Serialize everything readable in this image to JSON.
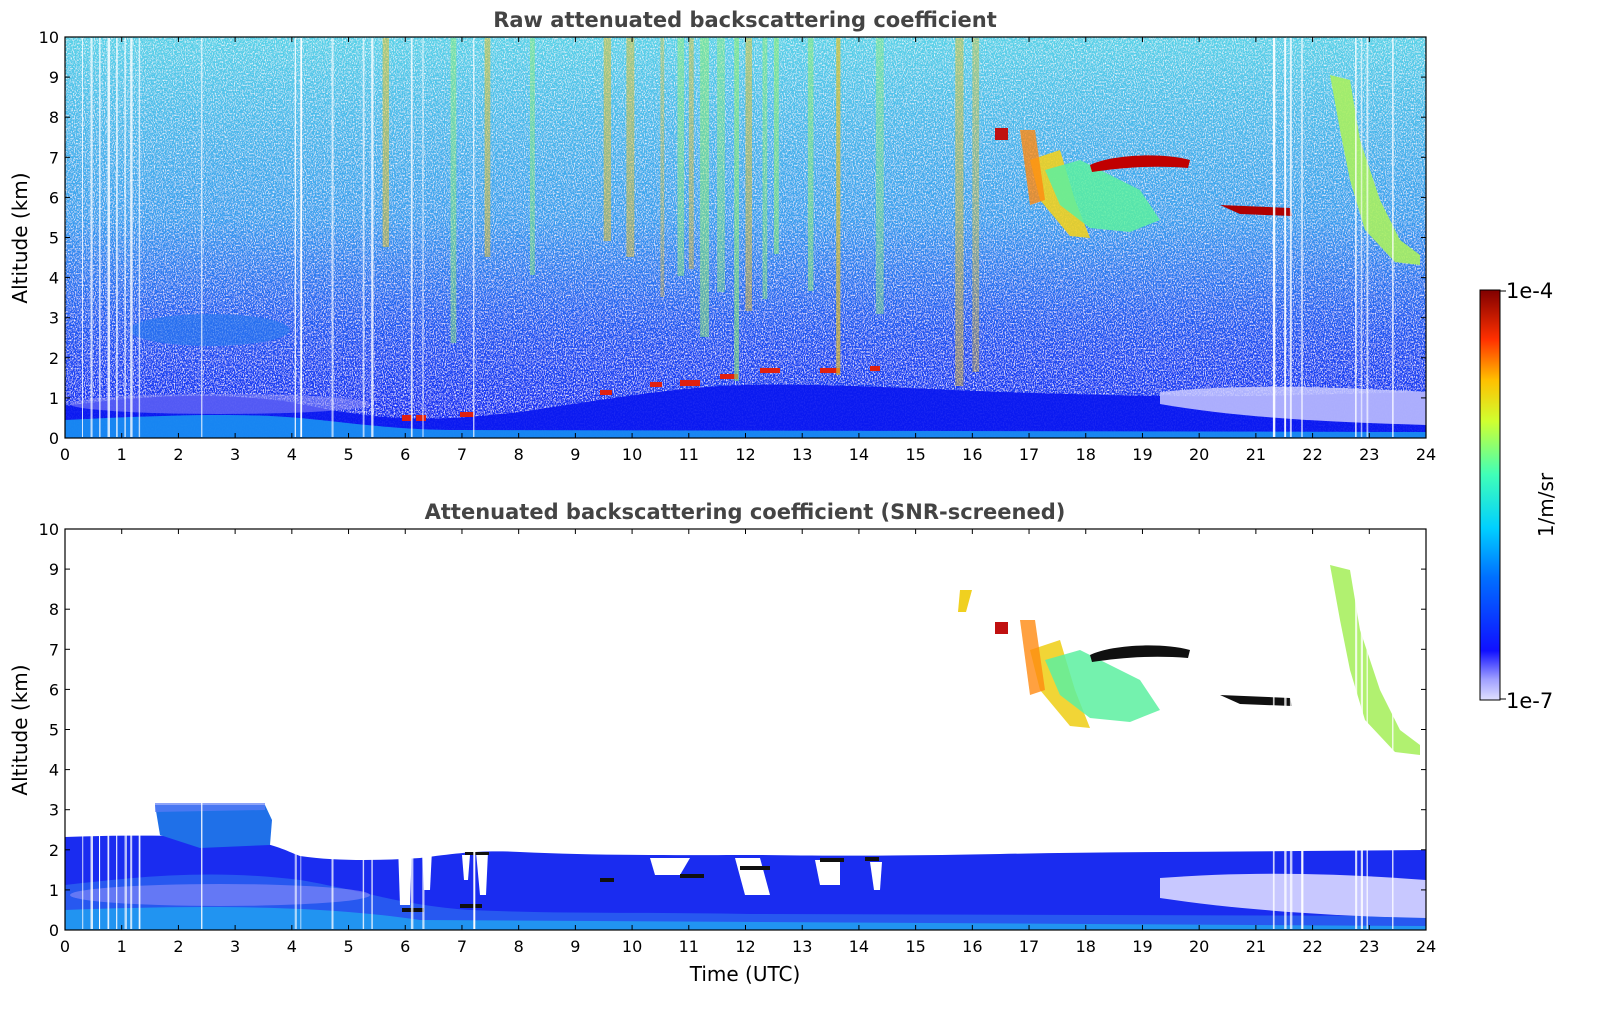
{
  "chart_data": [
    {
      "type": "heatmap",
      "panel": "top",
      "title": "Raw attenuated backscattering coefficient",
      "xlabel": "",
      "ylabel": "Altitude (km)",
      "xlim": [
        0,
        24
      ],
      "ylim": [
        0,
        10
      ],
      "xticks": [
        "0",
        "1",
        "2",
        "3",
        "4",
        "5",
        "6",
        "7",
        "8",
        "9",
        "10",
        "11",
        "12",
        "13",
        "14",
        "15",
        "16",
        "17",
        "18",
        "19",
        "20",
        "21",
        "22",
        "23",
        "24"
      ],
      "yticks": [
        "0",
        "1",
        "2",
        "3",
        "4",
        "5",
        "6",
        "7",
        "8",
        "9",
        "10"
      ],
      "features": [
        {
          "kind": "boundary-layer",
          "x": [
            0,
            24
          ],
          "y_top_km": [
            0.8,
            0.9,
            1.0,
            0.9,
            0.8,
            0.7,
            0.6,
            0.8,
            1.0,
            1.1,
            1.2,
            1.1,
            1.0,
            1.0,
            0.9,
            0.9,
            0.8,
            0.8,
            0.8,
            0.9,
            1.0,
            1.1,
            1.2,
            1.3,
            1.3
          ]
        },
        {
          "kind": "aerosol-layer",
          "x": [
            1.5,
            3.8
          ],
          "y": [
            2.3,
            3.1
          ]
        },
        {
          "kind": "cloud",
          "x": [
            16.4,
            21.7
          ],
          "y": [
            5.0,
            7.8
          ]
        },
        {
          "kind": "cloud",
          "x": [
            22.2,
            24.0
          ],
          "y": [
            4.3,
            9.0
          ]
        },
        {
          "kind": "cloud-base",
          "x": [
            6.0,
            14.4
          ],
          "y": [
            0.4,
            2.2
          ]
        }
      ]
    },
    {
      "type": "heatmap",
      "panel": "bottom",
      "title": "Attenuated backscattering coefficient (SNR-screened)",
      "xlabel": "Time (UTC)",
      "ylabel": "Altitude (km)",
      "xlim": [
        0,
        24
      ],
      "ylim": [
        0,
        10
      ],
      "xticks": [
        "0",
        "1",
        "2",
        "3",
        "4",
        "5",
        "6",
        "7",
        "8",
        "9",
        "10",
        "11",
        "12",
        "13",
        "14",
        "15",
        "16",
        "17",
        "18",
        "19",
        "20",
        "21",
        "22",
        "23",
        "24"
      ],
      "yticks": [
        "0",
        "1",
        "2",
        "3",
        "4",
        "5",
        "6",
        "7",
        "8",
        "9",
        "10"
      ],
      "features": [
        {
          "kind": "boundary-layer",
          "x": [
            0,
            24
          ],
          "y_top_km": [
            2.3,
            2.2,
            2.6,
            2.6,
            1.8,
            1.7,
            1.6,
            2.0,
            2.0,
            1.9,
            1.9,
            1.9,
            1.9,
            1.9,
            1.9,
            1.9,
            1.8,
            1.9,
            1.8,
            1.9,
            1.9,
            1.9,
            1.9,
            1.9,
            1.9
          ]
        },
        {
          "kind": "aerosol-layer",
          "x": [
            1.6,
            3.6
          ],
          "y": [
            2.3,
            3.1
          ]
        },
        {
          "kind": "cloud",
          "x": [
            16.4,
            21.7
          ],
          "y": [
            5.0,
            7.8
          ]
        },
        {
          "kind": "cloud",
          "x": [
            22.2,
            24.0
          ],
          "y": [
            4.3,
            9.0
          ]
        }
      ]
    }
  ],
  "colorbar": {
    "label": "1/m/sr",
    "max_label": "1e-4",
    "min_label": "1e-7",
    "scale": "log",
    "colormap": "jet",
    "range": [
      1e-07,
      0.0001
    ]
  }
}
